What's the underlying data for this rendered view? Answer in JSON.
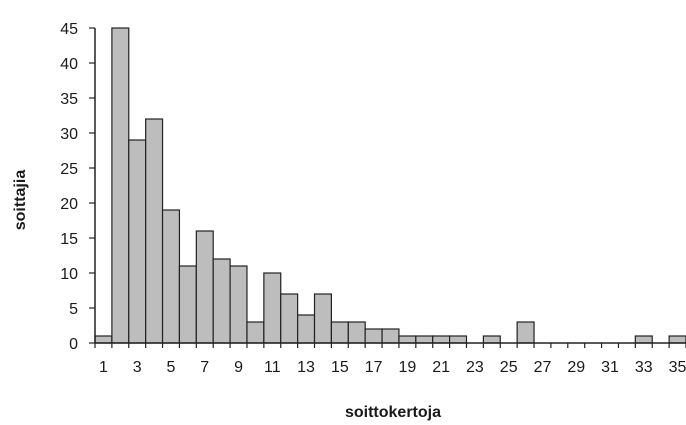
{
  "chart_data": {
    "type": "bar",
    "xlabel": "soittokertoja",
    "ylabel": "soittajia",
    "categories": [
      "1",
      "2",
      "3",
      "4",
      "5",
      "6",
      "7",
      "8",
      "9",
      "10",
      "11",
      "12",
      "13",
      "14",
      "15",
      "16",
      "17",
      "18",
      "19",
      "20",
      "21",
      "22",
      "23",
      "24",
      "25",
      "26",
      "27",
      "28",
      "29",
      "30",
      "31",
      "32",
      "33",
      "34",
      "35"
    ],
    "x_tick_labels": [
      "1",
      "3",
      "5",
      "7",
      "9",
      "11",
      "13",
      "15",
      "17",
      "19",
      "21",
      "23",
      "25",
      "27",
      "29",
      "31",
      "33",
      "35"
    ],
    "values": [
      1,
      45,
      29,
      32,
      19,
      11,
      16,
      12,
      11,
      3,
      10,
      7,
      4,
      7,
      3,
      3,
      2,
      2,
      1,
      1,
      1,
      1,
      0,
      1,
      0,
      3,
      0,
      0,
      0,
      0,
      0,
      0,
      1,
      0,
      1
    ],
    "ylim": [
      0,
      45
    ],
    "y_ticks": [
      0,
      5,
      10,
      15,
      20,
      25,
      30,
      35,
      40,
      45
    ],
    "grid": false,
    "legend": "none",
    "colors": {
      "bar_fill": "#bdbdbd",
      "bar_stroke": "#222222"
    }
  }
}
